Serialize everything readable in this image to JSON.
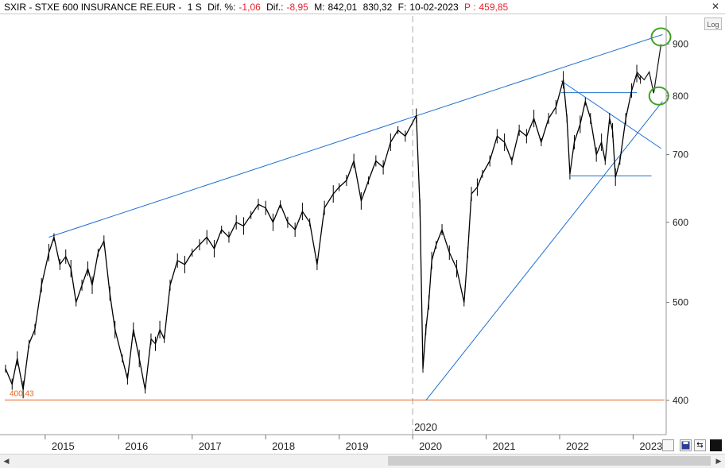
{
  "header": {
    "symbol": "SXIR - STXE 600 INSURANCE RE.EUR -",
    "period": "1 S",
    "pct_label": "Dif. %:",
    "pct_value": "-1,06",
    "diff_label": "Dif.:",
    "diff_value": "-8,95",
    "max_label": "M:",
    "max_value": "842,01",
    "min_value": "830,32",
    "date_label": "F:",
    "date_value": "10-02-2023",
    "price_label": "P :",
    "price_value": "459,85",
    "close_glyph": "✕"
  },
  "toolbar": {
    "log_label": "Log",
    "arrow_glyph": "⇆"
  },
  "scrollbar": {
    "left_glyph": "◀",
    "right_glyph": "▶"
  },
  "chart_data": {
    "type": "line",
    "title": "SXIR - STXE 600 INSURANCE RE.EUR",
    "scale": "log",
    "ylim": [
      370,
      960
    ],
    "xlim": [
      2014.45,
      2023.45
    ],
    "yticks": [
      400,
      500,
      600,
      700,
      800,
      900
    ],
    "ytick_labels": [
      "400",
      "500",
      "600",
      "700",
      "800",
      "900"
    ],
    "xticks": [
      2015,
      2016,
      2017,
      2018,
      2019,
      2020,
      2021,
      2022,
      2023
    ],
    "xtick_labels": [
      "2015",
      "2016",
      "2017",
      "2018",
      "2019",
      "2020",
      "2021",
      "2022",
      "2023"
    ],
    "marker_line_label": "2020",
    "marker_line_x": 2020.0,
    "support_level": 400.43,
    "support_label": "400,43",
    "colors": {
      "price": "#000000",
      "trend": "#1f6fd1",
      "support": "#e8651e",
      "circle": "#3fa024",
      "marker": "#aaaaaa"
    },
    "series": [
      {
        "name": "",
        "x": [
          2014.46,
          2014.55,
          2014.62,
          2014.7,
          2014.78,
          2014.86,
          2014.95,
          2015.05,
          2015.12,
          2015.2,
          2015.28,
          2015.35,
          2015.42,
          2015.5,
          2015.58,
          2015.64,
          2015.72,
          2015.8,
          2015.88,
          2015.95,
          2016.05,
          2016.12,
          2016.2,
          2016.28,
          2016.36,
          2016.44,
          2016.5,
          2016.56,
          2016.62,
          2016.7,
          2016.8,
          2016.9,
          2017.0,
          2017.1,
          2017.2,
          2017.3,
          2017.4,
          2017.5,
          2017.6,
          2017.7,
          2017.8,
          2017.9,
          2018.0,
          2018.1,
          2018.2,
          2018.3,
          2018.4,
          2018.5,
          2018.6,
          2018.7,
          2018.8,
          2018.92,
          2019.0,
          2019.1,
          2019.2,
          2019.3,
          2019.4,
          2019.5,
          2019.6,
          2019.7,
          2019.8,
          2019.9,
          2020.05,
          2020.1,
          2020.14,
          2020.18,
          2020.22,
          2020.26,
          2020.32,
          2020.4,
          2020.5,
          2020.6,
          2020.7,
          2020.75,
          2020.8,
          2020.88,
          2020.95,
          2021.05,
          2021.15,
          2021.25,
          2021.35,
          2021.45,
          2021.55,
          2021.65,
          2021.75,
          2021.85,
          2021.95,
          2022.05,
          2022.1,
          2022.14,
          2022.2,
          2022.28,
          2022.35,
          2022.42,
          2022.5,
          2022.57,
          2022.62,
          2022.68,
          2022.72,
          2022.76,
          2022.82,
          2022.9,
          2022.98,
          2023.05,
          2023.1
        ],
        "values": [
          430,
          415,
          440,
          410,
          455,
          470,
          520,
          560,
          580,
          545,
          555,
          540,
          500,
          520,
          540,
          520,
          560,
          575,
          510,
          470,
          440,
          420,
          470,
          440,
          410,
          460,
          455,
          470,
          460,
          520,
          550,
          545,
          560,
          570,
          580,
          565,
          590,
          580,
          600,
          595,
          610,
          625,
          620,
          600,
          625,
          600,
          590,
          615,
          600,
          545,
          620,
          640,
          650,
          660,
          690,
          630,
          660,
          690,
          680,
          720,
          740,
          730,
          765,
          620,
          430,
          470,
          500,
          550,
          570,
          590,
          560,
          540,
          500,
          560,
          640,
          650,
          670,
          690,
          730,
          720,
          690,
          740,
          730,
          760,
          720,
          760,
          780,
          830,
          760,
          670,
          720,
          750,
          790,
          760,
          700,
          720,
          690,
          760,
          740,
          665,
          690,
          760,
          810,
          842,
          830
        ]
      }
    ],
    "annotations": {
      "upper_trend": [
        [
          2015.05,
          580
        ],
        [
          2023.4,
          920
        ]
      ],
      "lower_trend": [
        [
          2020.18,
          400
        ],
        [
          2023.4,
          790
        ]
      ],
      "wedge_upper": [
        [
          2022.02,
          828
        ],
        [
          2023.38,
          710
        ]
      ],
      "range_top": [
        [
          2022.02,
          806
        ],
        [
          2023.05,
          806
        ]
      ],
      "range_bottom": [
        [
          2022.15,
          667
        ],
        [
          2023.25,
          667
        ]
      ],
      "circles": [
        [
          2023.38,
          915
        ],
        [
          2023.35,
          800
        ]
      ],
      "projection": [
        [
          2023.05,
          845
        ],
        [
          2023.15,
          830
        ],
        [
          2023.22,
          845
        ],
        [
          2023.28,
          805
        ],
        [
          2023.38,
          900
        ]
      ]
    }
  }
}
